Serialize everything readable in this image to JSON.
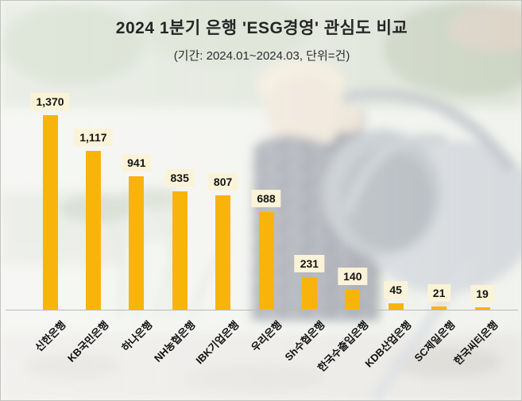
{
  "chart_data": {
    "type": "bar",
    "title": "2024 1분기 은행 'ESG경영' 관심도 비교",
    "subtitle": "(기간: 2024.01~2024.03, 단위=건)",
    "categories": [
      "신한은행",
      "KB국민은행",
      "하나은행",
      "NH농협은행",
      "IBK기업은행",
      "우리은행",
      "Sh수협은행",
      "한국수출입은행",
      "KDB산업은행",
      "SC제일은행",
      "한국씨티은행"
    ],
    "values": [
      1370,
      1117,
      941,
      835,
      807,
      688,
      231,
      140,
      45,
      21,
      19
    ],
    "value_labels": [
      "1,370",
      "1,117",
      "941",
      "835",
      "807",
      "688",
      "231",
      "140",
      "45",
      "21",
      "19"
    ],
    "xlabel": "",
    "ylabel": "",
    "ylim": [
      0,
      1370
    ],
    "grid": false,
    "legend": false,
    "bar_color": "#F9B40C",
    "value_label_bg": "#FBF3D8",
    "value_label_color": "#141414",
    "title_color": "#262626",
    "axis_line_color": "#b9bab6"
  }
}
